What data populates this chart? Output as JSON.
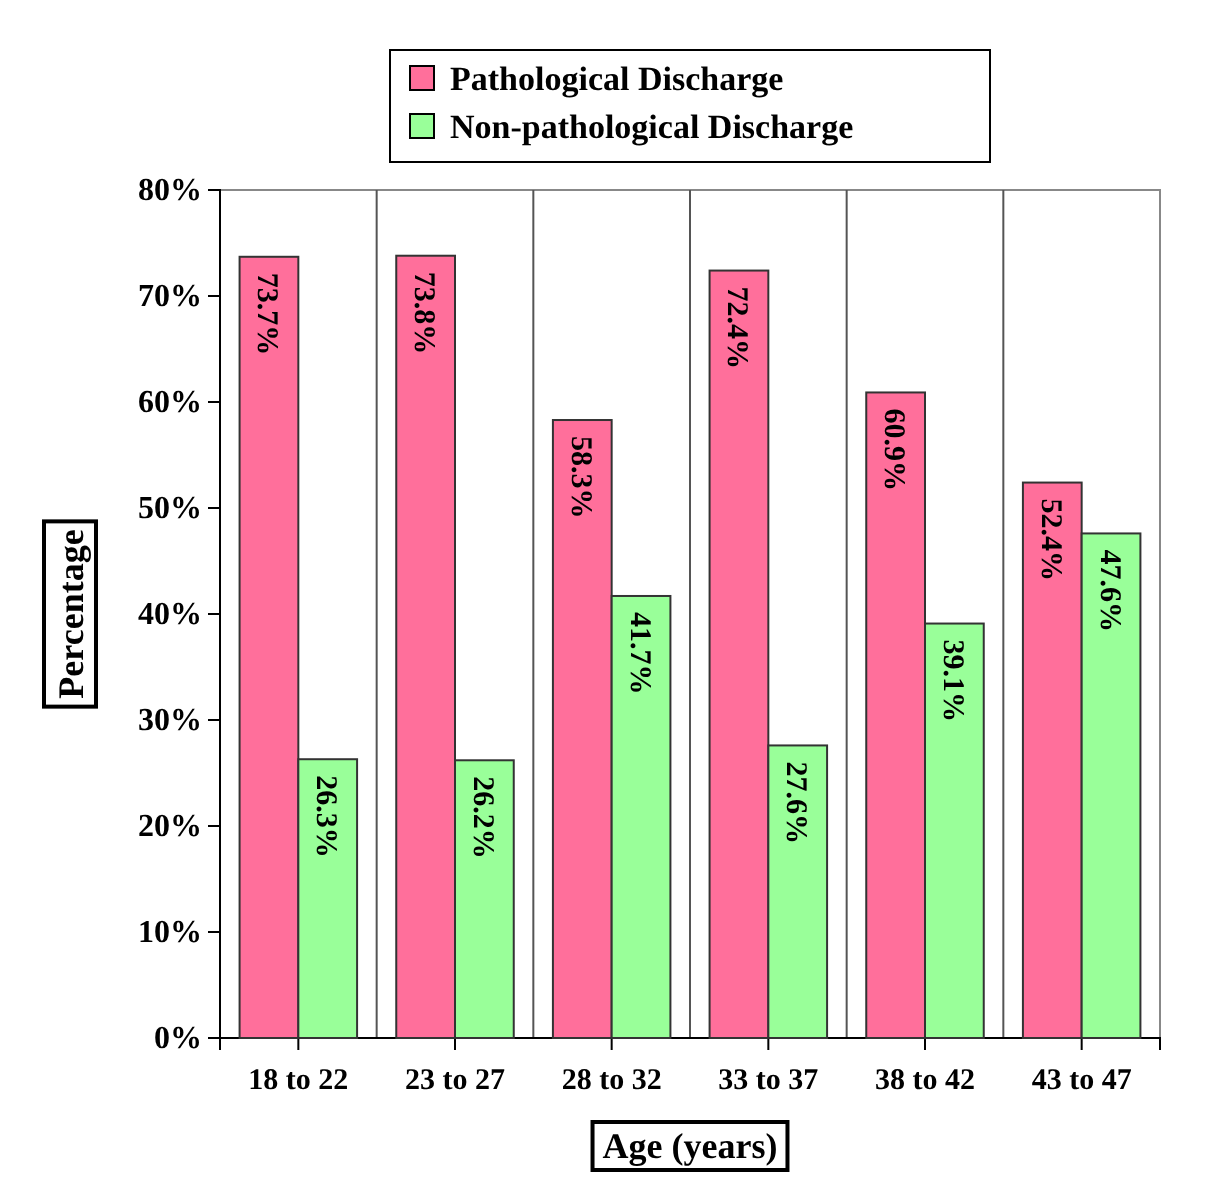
{
  "chart_data": {
    "type": "bar",
    "xlabel": "Age (years)",
    "ylabel": "Percentage",
    "categories": [
      "18 to 22",
      "23 to 27",
      "28 to 32",
      "33 to 37",
      "38 to 42",
      "43 to 47"
    ],
    "series": [
      {
        "name": "Pathological Discharge",
        "color": "#ff6f9b",
        "values": [
          73.7,
          73.8,
          58.3,
          72.4,
          60.9,
          52.4
        ],
        "value_labels": [
          "73.7%",
          "73.8%",
          "58.3%",
          "72.4%",
          "60.9%",
          "52.4%"
        ]
      },
      {
        "name": "Non-pathological Discharge",
        "color": "#99ff99",
        "values": [
          26.3,
          26.2,
          41.7,
          27.6,
          39.1,
          47.6
        ],
        "value_labels": [
          "26.3%",
          "26.2%",
          "41.7%",
          "27.6%",
          "39.1%",
          "47.6%"
        ]
      }
    ],
    "ylim": [
      0,
      80
    ],
    "yticks": [
      {
        "value": 0,
        "label": "0%"
      },
      {
        "value": 10,
        "label": "10%"
      },
      {
        "value": 20,
        "label": "20%"
      },
      {
        "value": 30,
        "label": "30%"
      },
      {
        "value": 40,
        "label": "40%"
      },
      {
        "value": 50,
        "label": "50%"
      },
      {
        "value": 60,
        "label": "60%"
      },
      {
        "value": 70,
        "label": "70%"
      },
      {
        "value": 80,
        "label": "80%"
      }
    ],
    "grid": "x",
    "legend": "top"
  }
}
